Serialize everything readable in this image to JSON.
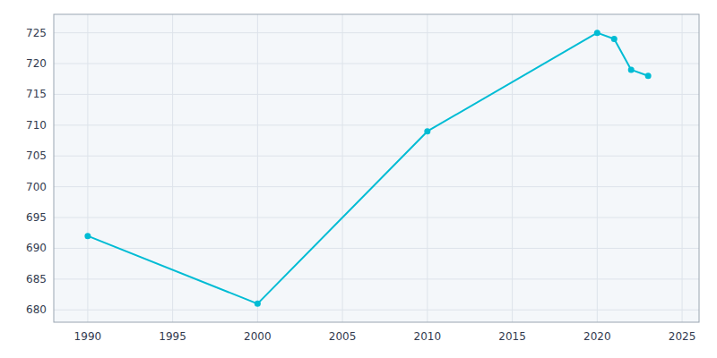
{
  "chart_data": {
    "type": "line",
    "x": [
      1990,
      2000,
      2010,
      2020,
      2021,
      2022,
      2023
    ],
    "values": [
      692,
      681,
      709,
      725,
      724,
      719,
      718
    ],
    "color": "#00BCD4",
    "marker": "circle",
    "xlim": [
      1988,
      2026
    ],
    "ylim": [
      678,
      728
    ],
    "xticks": [
      1990,
      1995,
      2000,
      2005,
      2010,
      2015,
      2020,
      2025
    ],
    "yticks": [
      680,
      685,
      690,
      695,
      700,
      705,
      710,
      715,
      720,
      725
    ],
    "grid": true
  }
}
